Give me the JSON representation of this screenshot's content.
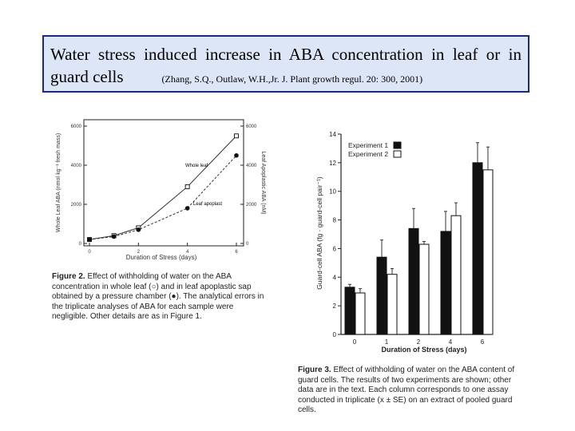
{
  "header": {
    "title": "Water stress induced increase in ABA concentration in leaf or in",
    "title_line2": "guard cells",
    "citation": "(Zhang, S.Q., Outlaw, W.H.,Jr. J. Plant growth regul. 20: 300,  2001)"
  },
  "figure2": {
    "caption_label": "Figure 2.",
    "caption_text": "Effect of withholding of water on the ABA concentration in whole leaf (○) and in leaf apoplastic sap obtained by a pressure chamber (●). The analytical errors in the triplicate analyses of ABA for each sample were negligible. Other details are as in Figure 1."
  },
  "figure3": {
    "caption_label": "Figure 3.",
    "caption_text": "Effect of withholding of water on the ABA content of guard cells. The results of two experiments are shown; other data are in the text. Each column corresponds to one assay conducted in triplicate (x ± SE) on an extract of pooled guard cells."
  },
  "chart_data": [
    {
      "type": "line",
      "title": "",
      "xlabel": "Duration of Stress (days)",
      "ylabel": "Whole Leaf ABA (nmol·kg⁻¹ fresh mass)",
      "y2label": "Leaf Apoplastic ABA (nM)",
      "xlim": [
        0,
        6
      ],
      "ylim": [
        0,
        6000
      ],
      "y2lim": [
        0,
        6000
      ],
      "x_ticks": [
        0,
        2,
        4,
        6
      ],
      "y_ticks": [
        0,
        2000,
        4000,
        6000
      ],
      "y_tick_labels": [
        "0",
        "2000",
        "4000",
        "6000"
      ],
      "y2_ticks": [
        0,
        2000,
        4000,
        6000
      ],
      "y2_tick_labels": [
        "0",
        "2000",
        "4000",
        "6000"
      ],
      "series": [
        {
          "name": "Whole leaf",
          "marker": "open-square",
          "style": "solid",
          "x": [
            0,
            1,
            2,
            4,
            6
          ],
          "values": [
            200,
            400,
            800,
            2900,
            5500
          ]
        },
        {
          "name": "Leaf apoplast",
          "marker": "filled-circle",
          "style": "dashed",
          "x": [
            0,
            1,
            2,
            4,
            6
          ],
          "values": [
            200,
            350,
            700,
            1800,
            4500
          ]
        }
      ],
      "annotations": [
        "Whole leaf",
        "Leaf apoplast"
      ]
    },
    {
      "type": "bar",
      "title": "",
      "xlabel": "Duration of Stress (days)",
      "ylabel": "Guard-cell ABA (fg · guard-cell pair⁻¹)",
      "ylim": [
        0,
        14
      ],
      "y_ticks": [
        0,
        2,
        4,
        6,
        8,
        10,
        12,
        14
      ],
      "categories": [
        "0",
        "1",
        "2",
        "4",
        "6"
      ],
      "legend": "top-left",
      "series": [
        {
          "name": "Experiment 1",
          "fill": "#111111",
          "values": [
            3.3,
            5.4,
            7.4,
            7.2,
            12.0
          ],
          "errors": [
            0.2,
            1.2,
            1.4,
            1.4,
            1.4
          ]
        },
        {
          "name": "Experiment 2",
          "fill": "#ffffff",
          "values": [
            2.9,
            4.2,
            6.3,
            8.3,
            11.5
          ],
          "errors": [
            0.3,
            0.4,
            0.2,
            0.9,
            1.6
          ]
        }
      ]
    }
  ]
}
